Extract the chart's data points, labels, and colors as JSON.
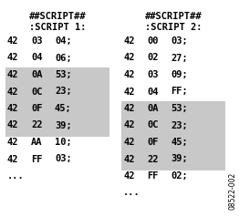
{
  "script1_header": [
    "##SCRIPT##",
    ":SCRIPT 1:"
  ],
  "script2_header": [
    "##SCRIPT##",
    ":SCRIPT 2:"
  ],
  "script1_rows": [
    [
      "42",
      "03",
      "04;",
      false
    ],
    [
      "42",
      "04",
      "06;",
      false
    ],
    [
      "42",
      "0A",
      "53;",
      true
    ],
    [
      "42",
      "0C",
      "23;",
      true
    ],
    [
      "42",
      "0F",
      "45;",
      true
    ],
    [
      "42",
      "22",
      "39;",
      true
    ],
    [
      "42",
      "AA",
      "10;",
      false
    ],
    [
      "42",
      "FF",
      "03;",
      false
    ],
    [
      "...",
      "",
      "",
      false
    ]
  ],
  "script2_rows": [
    [
      "42",
      "00",
      "03;",
      false
    ],
    [
      "42",
      "02",
      "27;",
      false
    ],
    [
      "42",
      "03",
      "09;",
      false
    ],
    [
      "42",
      "04",
      "FF;",
      false
    ],
    [
      "42",
      "0A",
      "53;",
      true
    ],
    [
      "42",
      "0C",
      "23;",
      true
    ],
    [
      "42",
      "0F",
      "45;",
      true
    ],
    [
      "42",
      "22",
      "39;",
      true
    ],
    [
      "42",
      "FF",
      "02;",
      false
    ],
    [
      "...",
      "",
      "",
      false
    ]
  ],
  "highlight_color": "#c8c8c8",
  "bg_color": "#ffffff",
  "fignum": "08522-002"
}
